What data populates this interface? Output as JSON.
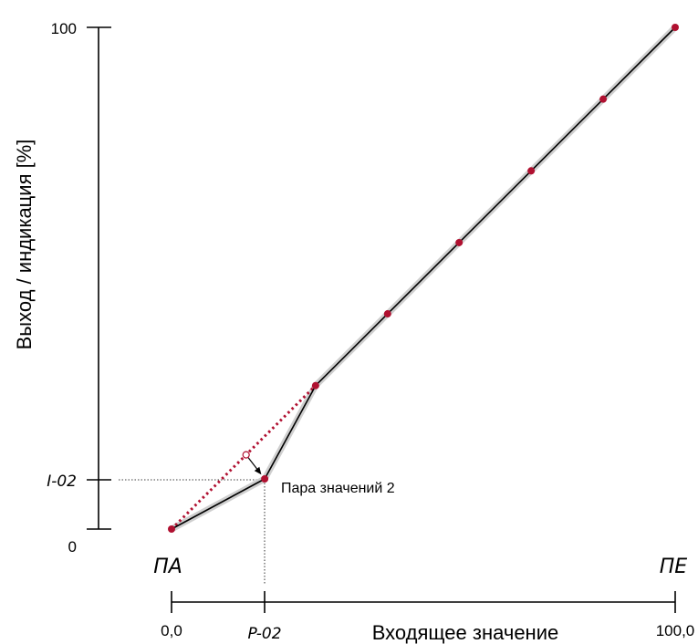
{
  "chart_data": {
    "type": "line",
    "title": "",
    "ylabel": "Выход / индикация [%]",
    "xlabel": "Входящее значение",
    "y_ticks": [
      {
        "label": "100",
        "value": 100
      },
      {
        "label": "I-02",
        "value": 10
      },
      {
        "label": "0",
        "value": 0
      }
    ],
    "x_ticks": [
      {
        "label": "0,0",
        "value": 0
      },
      {
        "label": "P-02",
        "value": 18.5
      },
      {
        "label": "100,0",
        "value": 100
      }
    ],
    "range_labels": {
      "start": "ПА",
      "end": "ПЕ"
    },
    "xlim": [
      0,
      100
    ],
    "ylim": [
      0,
      100
    ],
    "series": [
      {
        "x": [
          0,
          18.5,
          28.6,
          42.9,
          57.1,
          71.4,
          85.7,
          100
        ],
        "y": [
          0,
          10,
          28.6,
          42.9,
          57.1,
          71.4,
          85.7,
          100
        ]
      }
    ],
    "linear_reference": {
      "x": [
        0,
        28.6
      ],
      "y": [
        0,
        28.6
      ]
    },
    "original_point": {
      "x": 14.8,
      "y": 14.8
    },
    "annotation": {
      "text": "Пара значений 2",
      "x": 18.5,
      "y": 10
    },
    "colors": {
      "points": "#b01030",
      "line": "#000000",
      "halo": "#cfcfcf",
      "dotted": "#b01030"
    }
  }
}
